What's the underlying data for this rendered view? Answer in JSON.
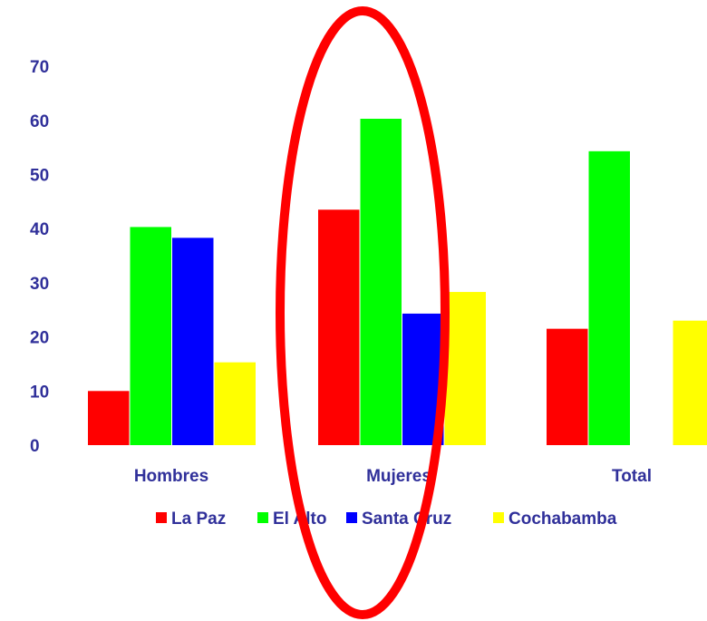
{
  "chart_data": {
    "type": "bar",
    "title": "",
    "xlabel": "",
    "ylabel": "",
    "categories": [
      "Hombres",
      "Mujeres",
      "Total"
    ],
    "yticks": [
      "0",
      "10",
      "20",
      "30",
      "40",
      "50",
      "60",
      "70"
    ],
    "ylim": [
      0,
      70
    ],
    "grid": false,
    "legend_placement": "bottom",
    "series": [
      {
        "name": "La Paz",
        "color": "#ff0000",
        "values": [
          10,
          43.5,
          21.5
        ]
      },
      {
        "name": "El Alto",
        "color": "#00ff00",
        "values": [
          40.3,
          60.3,
          54.3
        ]
      },
      {
        "name": "Santa Cruz",
        "color": "#0000ff",
        "values": [
          38.3,
          24.3,
          null
        ]
      },
      {
        "name": "Cochabamba",
        "color": "#ffff00",
        "values": [
          15.3,
          28.3,
          23
        ]
      }
    ],
    "annotation": {
      "shape": "ellipse",
      "color": "#ff0000",
      "highlights": "Mujeres"
    }
  }
}
